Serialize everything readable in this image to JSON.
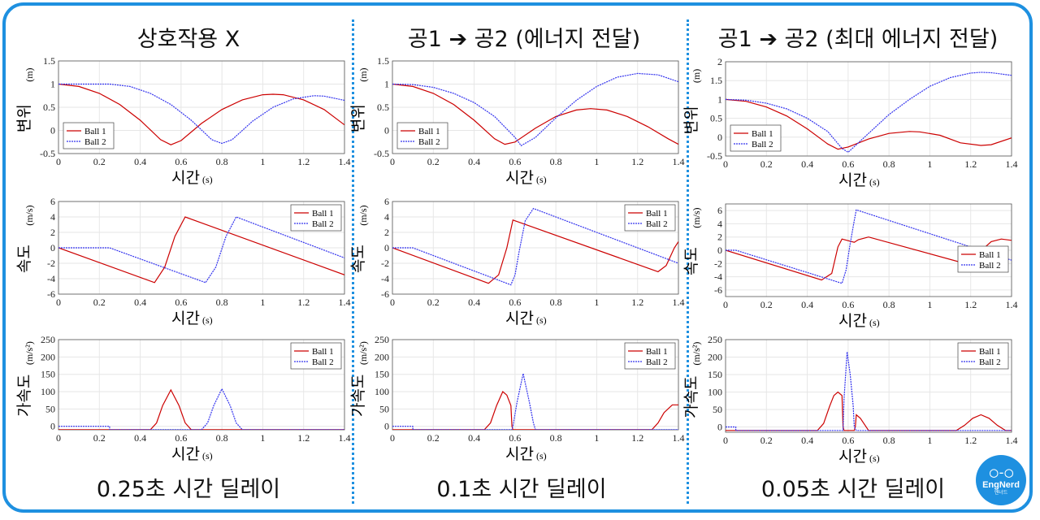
{
  "columns": [
    {
      "title": "상호작용 X",
      "footer": "0.25초 시간 딜레이"
    },
    {
      "title": "공1 ➔ 공2 (에너지 전달)",
      "footer": "0.1초 시간 딜레이"
    },
    {
      "title": "공1 ➔ 공2 (최대 에너지 전달)",
      "footer": "0.05초 시간 딜레이"
    }
  ],
  "logo": {
    "glasses": "◯-◯",
    "name": "EngNerd",
    "sub": "엔너드"
  },
  "colors": {
    "ball1": "#cc0000",
    "ball2": "#3333ee",
    "frame": "#1e90e0",
    "grid": "#e6e6e6"
  },
  "chart_data": [
    {
      "type": "line",
      "column": 0,
      "ylabel": "변위",
      "yunit": "(m)",
      "xlabel": "시간",
      "xunit": "(s)",
      "xlim": [
        0,
        1.4
      ],
      "ylim": [
        -0.5,
        1.5
      ],
      "yticks": [
        -0.5,
        0,
        0.5,
        1,
        1.5
      ],
      "xticks": [
        0,
        0.2,
        0.4,
        0.6,
        0.8,
        1,
        1.2,
        1.4
      ],
      "legend_pos": "bottom-left",
      "series": [
        {
          "name": "Ball 1",
          "x": [
            0,
            0.1,
            0.2,
            0.3,
            0.4,
            0.5,
            0.55,
            0.6,
            0.7,
            0.8,
            0.9,
            1.0,
            1.05,
            1.1,
            1.2,
            1.3,
            1.4
          ],
          "y": [
            1.0,
            0.95,
            0.8,
            0.56,
            0.22,
            -0.2,
            -0.31,
            -0.22,
            0.15,
            0.45,
            0.66,
            0.77,
            0.78,
            0.77,
            0.66,
            0.45,
            0.12
          ]
        },
        {
          "name": "Ball 2",
          "x": [
            0,
            0.25,
            0.35,
            0.45,
            0.55,
            0.65,
            0.75,
            0.8,
            0.85,
            0.95,
            1.05,
            1.15,
            1.25,
            1.3,
            1.4
          ],
          "y": [
            1.0,
            1.0,
            0.95,
            0.8,
            0.56,
            0.22,
            -0.2,
            -0.28,
            -0.2,
            0.2,
            0.5,
            0.68,
            0.75,
            0.74,
            0.65
          ]
        }
      ]
    },
    {
      "type": "line",
      "column": 0,
      "ylabel": "속도",
      "yunit": "(m/s)",
      "xlabel": "시간",
      "xunit": "(s)",
      "xlim": [
        0,
        1.4
      ],
      "ylim": [
        -6,
        6
      ],
      "yticks": [
        -6,
        -4,
        -2,
        0,
        2,
        4,
        6
      ],
      "xticks": [
        0,
        0.2,
        0.4,
        0.6,
        0.8,
        1,
        1.2,
        1.4
      ],
      "legend_pos": "top-right",
      "series": [
        {
          "name": "Ball 1",
          "x": [
            0,
            0.47,
            0.52,
            0.57,
            0.62,
            1.4
          ],
          "y": [
            0,
            -4.5,
            -2.5,
            1.5,
            4.0,
            -3.5
          ]
        },
        {
          "name": "Ball 2",
          "x": [
            0,
            0.25,
            0.72,
            0.77,
            0.82,
            0.87,
            1.4
          ],
          "y": [
            0,
            0,
            -4.5,
            -2.5,
            1.5,
            4.0,
            -1.3
          ]
        }
      ]
    },
    {
      "type": "line",
      "column": 0,
      "ylabel": "가속도",
      "yunit": "(m/s²)",
      "xlabel": "시간",
      "xunit": "(s)",
      "xlim": [
        0,
        1.4
      ],
      "ylim": [
        -10,
        250
      ],
      "yticks": [
        0,
        50,
        100,
        150,
        200,
        250
      ],
      "xticks": [
        0,
        0.2,
        0.4,
        0.6,
        0.8,
        1,
        1.2,
        1.4
      ],
      "legend_pos": "top-right",
      "series": [
        {
          "name": "Ball 1",
          "x": [
            0,
            0.45,
            0.48,
            0.51,
            0.55,
            0.59,
            0.62,
            0.65,
            1.4
          ],
          "y": [
            -9.8,
            -9.8,
            10,
            60,
            105,
            60,
            10,
            -9.8,
            -9.8
          ]
        },
        {
          "name": "Ball 2",
          "x": [
            0,
            0.25,
            0.25,
            0.7,
            0.73,
            0.76,
            0.8,
            0.84,
            0.87,
            0.9,
            1.4
          ],
          "y": [
            0,
            0,
            -9.8,
            -9.8,
            10,
            60,
            108,
            60,
            10,
            -9.8,
            -9.8
          ]
        }
      ]
    },
    {
      "type": "line",
      "column": 1,
      "ylabel": "변위",
      "yunit": "(m)",
      "xlabel": "시간",
      "xunit": "(s)",
      "xlim": [
        0,
        1.4
      ],
      "ylim": [
        -0.5,
        1.5
      ],
      "yticks": [
        -0.5,
        0,
        0.5,
        1,
        1.5
      ],
      "xticks": [
        0,
        0.2,
        0.4,
        0.6,
        0.8,
        1,
        1.2,
        1.4
      ],
      "legend_pos": "bottom-left",
      "series": [
        {
          "name": "Ball 1",
          "x": [
            0,
            0.1,
            0.2,
            0.3,
            0.4,
            0.5,
            0.55,
            0.6,
            0.7,
            0.8,
            0.9,
            0.97,
            1.05,
            1.15,
            1.25,
            1.35,
            1.4
          ],
          "y": [
            1.0,
            0.95,
            0.8,
            0.56,
            0.22,
            -0.18,
            -0.3,
            -0.25,
            0.05,
            0.3,
            0.44,
            0.47,
            0.44,
            0.3,
            0.08,
            -0.18,
            -0.3
          ]
        },
        {
          "name": "Ball 2",
          "x": [
            0,
            0.1,
            0.2,
            0.3,
            0.4,
            0.5,
            0.6,
            0.63,
            0.7,
            0.8,
            0.9,
            1.0,
            1.1,
            1.2,
            1.3,
            1.4
          ],
          "y": [
            1.0,
            0.99,
            0.93,
            0.8,
            0.6,
            0.3,
            -0.15,
            -0.33,
            -0.15,
            0.27,
            0.65,
            0.95,
            1.15,
            1.23,
            1.2,
            1.05
          ]
        }
      ]
    },
    {
      "type": "line",
      "column": 1,
      "ylabel": "속도",
      "yunit": "(m/s)",
      "xlabel": "시간",
      "xunit": "(s)",
      "xlim": [
        0,
        1.4
      ],
      "ylim": [
        -6,
        6
      ],
      "yticks": [
        -6,
        -4,
        -2,
        0,
        2,
        4,
        6
      ],
      "xticks": [
        0,
        0.2,
        0.4,
        0.6,
        0.8,
        1,
        1.2,
        1.4
      ],
      "legend_pos": "top-right",
      "series": [
        {
          "name": "Ball 1",
          "x": [
            0,
            0.47,
            0.52,
            0.56,
            0.59,
            1.3,
            1.34,
            1.38,
            1.4
          ],
          "y": [
            0,
            -4.6,
            -3.5,
            0,
            3.6,
            -3.1,
            -2.3,
            0,
            0.8
          ]
        },
        {
          "name": "Ball 2",
          "x": [
            0,
            0.1,
            0.58,
            0.6,
            0.62,
            0.65,
            0.69,
            1.4
          ],
          "y": [
            0,
            0,
            -4.8,
            -3.5,
            -0.5,
            3.5,
            5.1,
            -2.0
          ]
        }
      ]
    },
    {
      "type": "line",
      "column": 1,
      "ylabel": "가속도",
      "yunit": "(m/s²)",
      "xlabel": "시간",
      "xunit": "(s)",
      "xlim": [
        0,
        1.4
      ],
      "ylim": [
        -10,
        250
      ],
      "yticks": [
        0,
        50,
        100,
        150,
        200,
        250
      ],
      "xticks": [
        0,
        0.2,
        0.4,
        0.6,
        0.8,
        1,
        1.2,
        1.4
      ],
      "legend_pos": "top-right",
      "series": [
        {
          "name": "Ball 1",
          "x": [
            0,
            0.45,
            0.48,
            0.51,
            0.54,
            0.56,
            0.58,
            0.585,
            0.59,
            1.27,
            1.3,
            1.33,
            1.37,
            1.4
          ],
          "y": [
            -9.8,
            -9.8,
            10,
            60,
            100,
            90,
            60,
            0,
            -9.8,
            -9.8,
            10,
            40,
            62,
            62
          ]
        },
        {
          "name": "Ball 2",
          "x": [
            0,
            0.1,
            0.1,
            0.585,
            0.59,
            0.61,
            0.64,
            0.67,
            0.69,
            0.7,
            1.4
          ],
          "y": [
            0,
            0,
            -9.8,
            -9.8,
            0,
            70,
            152,
            70,
            10,
            -9.8,
            -9.8
          ]
        }
      ]
    },
    {
      "type": "line",
      "column": 2,
      "ylabel": "변위",
      "yunit": "(m)",
      "xlabel": "시간",
      "xunit": "(s)",
      "xlim": [
        0,
        1.4
      ],
      "ylim": [
        -0.5,
        2
      ],
      "yticks": [
        -0.5,
        0,
        0.5,
        1,
        1.5,
        2
      ],
      "xticks": [
        0,
        0.2,
        0.4,
        0.6,
        0.8,
        1,
        1.2,
        1.4
      ],
      "legend_pos": "bottom-left",
      "series": [
        {
          "name": "Ball 1",
          "x": [
            0,
            0.1,
            0.2,
            0.3,
            0.4,
            0.5,
            0.55,
            0.6,
            0.7,
            0.8,
            0.9,
            0.95,
            1.05,
            1.15,
            1.25,
            1.3,
            1.4
          ],
          "y": [
            1.0,
            0.95,
            0.8,
            0.56,
            0.22,
            -0.18,
            -0.32,
            -0.26,
            -0.05,
            0.1,
            0.15,
            0.14,
            0.05,
            -0.15,
            -0.22,
            -0.2,
            -0.02
          ]
        },
        {
          "name": "Ball 2",
          "x": [
            0,
            0.1,
            0.2,
            0.3,
            0.4,
            0.5,
            0.57,
            0.6,
            0.7,
            0.8,
            0.9,
            1.0,
            1.1,
            1.2,
            1.25,
            1.3,
            1.4
          ],
          "y": [
            1.0,
            0.98,
            0.9,
            0.75,
            0.5,
            0.15,
            -0.3,
            -0.4,
            0.1,
            0.6,
            1.0,
            1.35,
            1.58,
            1.7,
            1.72,
            1.71,
            1.64
          ]
        }
      ]
    },
    {
      "type": "line",
      "column": 2,
      "ylabel": "속도",
      "yunit": "(m/s)",
      "xlabel": "시간",
      "xunit": "(s)",
      "xlim": [
        0,
        1.4
      ],
      "ylim": [
        -7,
        7
      ],
      "yticks": [
        -6,
        -4,
        -2,
        0,
        2,
        4,
        6
      ],
      "xticks": [
        0,
        0.2,
        0.4,
        0.6,
        0.8,
        1,
        1.2,
        1.4
      ],
      "legend_pos": "bottom-right",
      "series": [
        {
          "name": "Ball 1",
          "x": [
            0,
            0.47,
            0.52,
            0.55,
            0.57,
            0.63,
            0.65,
            0.7,
            1.15,
            1.2,
            1.3,
            1.35,
            1.4
          ],
          "y": [
            0,
            -4.5,
            -3.5,
            0.5,
            1.7,
            1.2,
            1.6,
            2.0,
            -1.8,
            -1.5,
            1.3,
            1.7,
            1.5
          ]
        },
        {
          "name": "Ball 2",
          "x": [
            0,
            0.05,
            0.57,
            0.59,
            0.61,
            0.63,
            0.64,
            1.4
          ],
          "y": [
            0,
            0,
            -5.0,
            -3.0,
            1.0,
            4.5,
            6.1,
            -1.5
          ]
        }
      ]
    },
    {
      "type": "line",
      "column": 2,
      "ylabel": "가속도",
      "yunit": "(m/s²)",
      "xlabel": "시간",
      "xunit": "(s)",
      "xlim": [
        0,
        1.4
      ],
      "ylim": [
        -15,
        250
      ],
      "yticks": [
        0,
        50,
        100,
        150,
        200,
        250
      ],
      "xticks": [
        0,
        0.2,
        0.4,
        0.6,
        0.8,
        1,
        1.2,
        1.4
      ],
      "legend_pos": "top-right",
      "series": [
        {
          "name": "Ball 1",
          "x": [
            0,
            0.45,
            0.48,
            0.51,
            0.53,
            0.55,
            0.57,
            0.575,
            0.58,
            0.63,
            0.635,
            0.64,
            0.66,
            0.7,
            1.13,
            1.17,
            1.21,
            1.25,
            1.29,
            1.33,
            1.37,
            1.4
          ],
          "y": [
            -9.8,
            -9.8,
            10,
            60,
            90,
            100,
            90,
            0,
            -9.8,
            -9.8,
            0,
            35,
            25,
            -9.8,
            -9.8,
            5,
            25,
            35,
            25,
            5,
            -9.8,
            -9.8
          ]
        },
        {
          "name": "Ball 2",
          "x": [
            0,
            0.05,
            0.05,
            0.575,
            0.58,
            0.595,
            0.61,
            0.625,
            0.63,
            0.64,
            1.4
          ],
          "y": [
            0,
            0,
            -9.8,
            -9.8,
            80,
            215,
            150,
            60,
            0,
            -9.8,
            -9.8
          ]
        }
      ]
    }
  ]
}
